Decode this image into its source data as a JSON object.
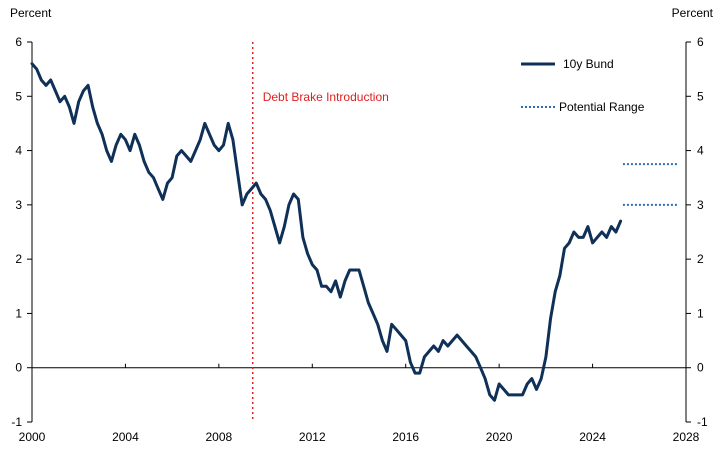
{
  "chart_data": {
    "type": "line",
    "title": "",
    "xlabel": "",
    "ylabel_left": "Percent",
    "ylabel_right": "Percent",
    "xlim": [
      2000,
      2028
    ],
    "ylim": [
      -1,
      6
    ],
    "x_ticks": [
      "2000",
      "2004",
      "2008",
      "2012",
      "2016",
      "2020",
      "2024",
      "2028"
    ],
    "y_ticks": [
      "-1",
      "0",
      "1",
      "2",
      "3",
      "4",
      "5",
      "6"
    ],
    "grid": false,
    "legend_position": "top-right",
    "series": [
      {
        "name": "10y Bund",
        "color": "#0f3057",
        "style": "solid",
        "x": [
          2000.0,
          2000.2,
          2000.4,
          2000.6,
          2000.8,
          2001.0,
          2001.2,
          2001.4,
          2001.6,
          2001.8,
          2002.0,
          2002.2,
          2002.4,
          2002.6,
          2002.8,
          2003.0,
          2003.2,
          2003.4,
          2003.6,
          2003.8,
          2004.0,
          2004.2,
          2004.4,
          2004.6,
          2004.8,
          2005.0,
          2005.2,
          2005.4,
          2005.6,
          2005.8,
          2006.0,
          2006.2,
          2006.4,
          2006.6,
          2006.8,
          2007.0,
          2007.2,
          2007.4,
          2007.6,
          2007.8,
          2008.0,
          2008.2,
          2008.4,
          2008.6,
          2008.8,
          2009.0,
          2009.2,
          2009.4,
          2009.6,
          2009.8,
          2010.0,
          2010.2,
          2010.4,
          2010.6,
          2010.8,
          2011.0,
          2011.2,
          2011.4,
          2011.6,
          2011.8,
          2012.0,
          2012.2,
          2012.4,
          2012.6,
          2012.8,
          2013.0,
          2013.2,
          2013.4,
          2013.6,
          2013.8,
          2014.0,
          2014.2,
          2014.4,
          2014.6,
          2014.8,
          2015.0,
          2015.2,
          2015.4,
          2015.6,
          2015.8,
          2016.0,
          2016.2,
          2016.4,
          2016.6,
          2016.8,
          2017.0,
          2017.2,
          2017.4,
          2017.6,
          2017.8,
          2018.0,
          2018.2,
          2018.4,
          2018.6,
          2018.8,
          2019.0,
          2019.2,
          2019.4,
          2019.6,
          2019.8,
          2020.0,
          2020.2,
          2020.4,
          2020.6,
          2020.8,
          2021.0,
          2021.2,
          2021.4,
          2021.6,
          2021.8,
          2022.0,
          2022.2,
          2022.4,
          2022.6,
          2022.8,
          2023.0,
          2023.2,
          2023.4,
          2023.6,
          2023.8,
          2024.0,
          2024.2,
          2024.4,
          2024.6,
          2024.8,
          2025.0,
          2025.2
        ],
        "y": [
          5.6,
          5.5,
          5.3,
          5.2,
          5.3,
          5.1,
          4.9,
          5.0,
          4.8,
          4.5,
          4.9,
          5.1,
          5.2,
          4.8,
          4.5,
          4.3,
          4.0,
          3.8,
          4.1,
          4.3,
          4.2,
          4.0,
          4.3,
          4.1,
          3.8,
          3.6,
          3.5,
          3.3,
          3.1,
          3.4,
          3.5,
          3.9,
          4.0,
          3.9,
          3.8,
          4.0,
          4.2,
          4.5,
          4.3,
          4.1,
          4.0,
          4.1,
          4.5,
          4.2,
          3.6,
          3.0,
          3.2,
          3.3,
          3.4,
          3.2,
          3.1,
          2.9,
          2.6,
          2.3,
          2.6,
          3.0,
          3.2,
          3.1,
          2.4,
          2.1,
          1.9,
          1.8,
          1.5,
          1.5,
          1.4,
          1.6,
          1.3,
          1.6,
          1.8,
          1.8,
          1.8,
          1.5,
          1.2,
          1.0,
          0.8,
          0.5,
          0.3,
          0.8,
          0.7,
          0.6,
          0.5,
          0.1,
          -0.1,
          -0.1,
          0.2,
          0.3,
          0.4,
          0.3,
          0.5,
          0.4,
          0.5,
          0.6,
          0.5,
          0.4,
          0.3,
          0.2,
          0.0,
          -0.2,
          -0.5,
          -0.6,
          -0.3,
          -0.4,
          -0.5,
          -0.5,
          -0.5,
          -0.5,
          -0.3,
          -0.2,
          -0.4,
          -0.2,
          0.2,
          0.9,
          1.4,
          1.7,
          2.2,
          2.3,
          2.5,
          2.4,
          2.4,
          2.6,
          2.3,
          2.4,
          2.5,
          2.4,
          2.6,
          2.5,
          2.7
        ]
      },
      {
        "name": "Potential Range",
        "color": "#2f6fad",
        "style": "dotted",
        "segments": [
          {
            "x": [
              2025.3,
              2027.7
            ],
            "y": [
              3.75,
              3.75
            ]
          },
          {
            "x": [
              2025.3,
              2027.7
            ],
            "y": [
              3.0,
              3.0
            ]
          }
        ]
      }
    ],
    "annotations": [
      {
        "text": "Debt Brake Introduction",
        "x": 2009.45,
        "color": "#e02020",
        "style": "dotted-vertical"
      }
    ]
  }
}
